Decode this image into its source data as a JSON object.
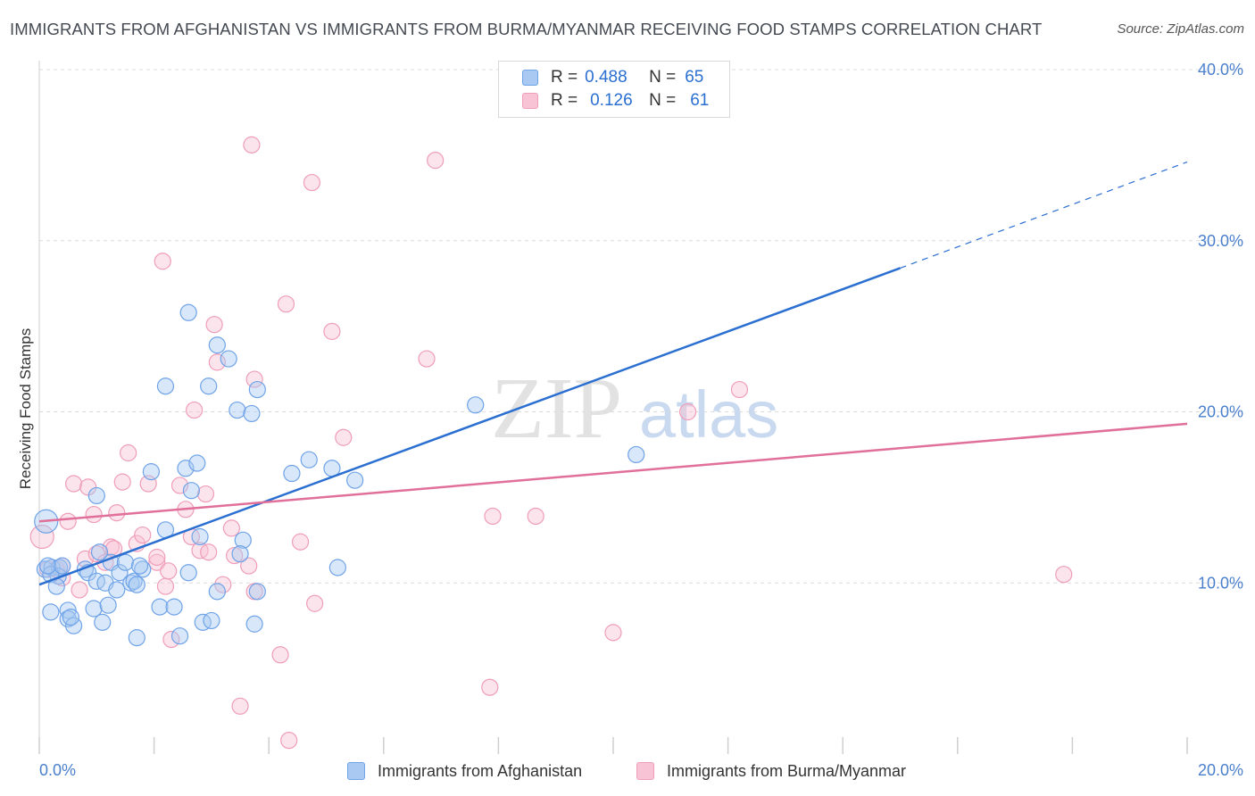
{
  "title": "IMMIGRANTS FROM AFGHANISTAN VS IMMIGRANTS FROM BURMA/MYANMAR RECEIVING FOOD STAMPS CORRELATION CHART",
  "source": "Source: ZipAtlas.com",
  "watermark": {
    "zip": "ZIP",
    "atlas": "atlas"
  },
  "legend": {
    "r_label": "R =",
    "n_label": "N =",
    "afghanistan": {
      "r": "0.488",
      "n": "65"
    },
    "burma": {
      "r": "0.126",
      "n": "61"
    }
  },
  "chart_data": {
    "type": "scatter",
    "title": "IMMIGRANTS FROM AFGHANISTAN VS IMMIGRANTS FROM BURMA/MYANMAR RECEIVING FOOD STAMPS CORRELATION CHART",
    "xlabel": "",
    "ylabel": "Receiving Food Stamps",
    "xlim": [
      0,
      20
    ],
    "ylim": [
      0,
      40
    ],
    "x_ticks": [
      "0.0%",
      "20.0%"
    ],
    "y_ticks": [
      {
        "value": 10,
        "label": "10.0%"
      },
      {
        "value": 20,
        "label": "20.0%"
      },
      {
        "value": 30,
        "label": "30.0%"
      },
      {
        "value": 40,
        "label": "40.0%"
      }
    ],
    "grid": true,
    "legend_position": "top-center",
    "series": [
      {
        "name": "Immigrants from Afghanistan",
        "color": "#6fa3e8",
        "fill": "#a9c9f2",
        "line_color": "#2b6fd1",
        "trend": {
          "x0": 0,
          "y0": 9.9,
          "x1": 15.0,
          "y1": 28.4,
          "x_dash_end": 20.0,
          "y_dash_end": 34.6
        },
        "points": [
          [
            0.12,
            13.6
          ],
          [
            0.1,
            10.8
          ],
          [
            0.22,
            10.9
          ],
          [
            0.35,
            10.9
          ],
          [
            0.33,
            10.4
          ],
          [
            0.2,
            10.5
          ],
          [
            0.3,
            9.8
          ],
          [
            0.5,
            8.4
          ],
          [
            0.2,
            8.3
          ],
          [
            0.5,
            7.9
          ],
          [
            0.6,
            7.5
          ],
          [
            0.55,
            8.0
          ],
          [
            0.8,
            10.8
          ],
          [
            0.85,
            10.6
          ],
          [
            1.0,
            10.1
          ],
          [
            1.15,
            10.0
          ],
          [
            0.95,
            8.5
          ],
          [
            1.1,
            7.7
          ],
          [
            1.2,
            8.7
          ],
          [
            1.0,
            15.1
          ],
          [
            1.35,
            9.6
          ],
          [
            1.25,
            11.2
          ],
          [
            1.4,
            10.6
          ],
          [
            1.5,
            11.2
          ],
          [
            1.6,
            10.0
          ],
          [
            1.65,
            10.1
          ],
          [
            1.7,
            9.9
          ],
          [
            1.8,
            10.8
          ],
          [
            1.75,
            11.0
          ],
          [
            1.7,
            6.8
          ],
          [
            1.95,
            16.5
          ],
          [
            2.1,
            8.6
          ],
          [
            2.2,
            13.1
          ],
          [
            2.35,
            8.6
          ],
          [
            2.45,
            6.9
          ],
          [
            2.55,
            16.7
          ],
          [
            2.6,
            10.6
          ],
          [
            2.6,
            25.8
          ],
          [
            2.2,
            21.5
          ],
          [
            2.65,
            15.4
          ],
          [
            2.75,
            17.0
          ],
          [
            2.8,
            12.7
          ],
          [
            2.95,
            21.5
          ],
          [
            2.85,
            7.7
          ],
          [
            3.0,
            7.8
          ],
          [
            3.1,
            9.5
          ],
          [
            3.1,
            23.9
          ],
          [
            3.3,
            23.1
          ],
          [
            3.45,
            20.1
          ],
          [
            3.55,
            12.5
          ],
          [
            3.5,
            11.7
          ],
          [
            3.7,
            19.9
          ],
          [
            3.75,
            7.6
          ],
          [
            3.8,
            9.5
          ],
          [
            3.8,
            21.3
          ],
          [
            4.4,
            16.4
          ],
          [
            4.7,
            17.2
          ],
          [
            5.1,
            16.7
          ],
          [
            5.2,
            10.9
          ],
          [
            5.5,
            16.0
          ],
          [
            7.6,
            20.4
          ],
          [
            10.4,
            17.5
          ],
          [
            0.15,
            11.0
          ],
          [
            0.4,
            11.0
          ],
          [
            1.05,
            11.8
          ]
        ]
      },
      {
        "name": "Immigrants from Burma/Myanmar",
        "color": "#ef9db8",
        "fill": "#f8c4d5",
        "line_color": "#e06f9a",
        "trend": {
          "x0": 0,
          "y0": 13.6,
          "x1": 20.0,
          "y1": 19.3
        },
        "points": [
          [
            0.05,
            12.7
          ],
          [
            0.15,
            10.8
          ],
          [
            0.3,
            10.8
          ],
          [
            0.4,
            10.3
          ],
          [
            0.5,
            13.6
          ],
          [
            0.6,
            15.8
          ],
          [
            0.7,
            9.6
          ],
          [
            0.8,
            11.4
          ],
          [
            0.85,
            15.6
          ],
          [
            0.95,
            14.0
          ],
          [
            1.0,
            11.7
          ],
          [
            1.15,
            11.2
          ],
          [
            1.25,
            12.1
          ],
          [
            1.35,
            14.1
          ],
          [
            1.45,
            15.9
          ],
          [
            1.55,
            17.6
          ],
          [
            1.7,
            12.3
          ],
          [
            1.8,
            12.8
          ],
          [
            1.9,
            15.8
          ],
          [
            2.05,
            11.2
          ],
          [
            2.15,
            28.8
          ],
          [
            2.2,
            9.8
          ],
          [
            2.25,
            10.7
          ],
          [
            2.3,
            6.7
          ],
          [
            2.45,
            15.7
          ],
          [
            2.55,
            14.3
          ],
          [
            2.65,
            12.7
          ],
          [
            2.7,
            20.1
          ],
          [
            2.8,
            11.9
          ],
          [
            2.9,
            15.2
          ],
          [
            3.05,
            25.1
          ],
          [
            3.1,
            22.9
          ],
          [
            3.2,
            9.9
          ],
          [
            3.35,
            13.2
          ],
          [
            3.4,
            11.6
          ],
          [
            3.5,
            2.8
          ],
          [
            3.65,
            11.0
          ],
          [
            3.75,
            9.5
          ],
          [
            3.75,
            21.9
          ],
          [
            3.7,
            35.6
          ],
          [
            4.2,
            5.8
          ],
          [
            4.3,
            26.3
          ],
          [
            4.35,
            0.8
          ],
          [
            4.55,
            12.4
          ],
          [
            4.75,
            33.4
          ],
          [
            4.8,
            8.8
          ],
          [
            5.1,
            24.7
          ],
          [
            5.3,
            18.5
          ],
          [
            6.75,
            23.1
          ],
          [
            6.9,
            34.7
          ],
          [
            7.85,
            3.9
          ],
          [
            7.9,
            13.9
          ],
          [
            8.65,
            13.9
          ],
          [
            10.0,
            7.1
          ],
          [
            11.3,
            20.0
          ],
          [
            12.2,
            21.3
          ],
          [
            17.85,
            10.5
          ],
          [
            1.3,
            12.0
          ],
          [
            2.95,
            11.8
          ],
          [
            0.4,
            11.0
          ],
          [
            2.05,
            11.5
          ]
        ]
      }
    ]
  },
  "bottom_legend": {
    "afghanistan_label": "Immigrants from Afghanistan",
    "burma_label": "Immigrants from Burma/Myanmar"
  },
  "colors": {
    "blue_stroke": "#6fa3e8",
    "blue_fill": "#a9c9f2",
    "blue_line": "#2b6fd1",
    "pink_stroke": "#ef9db8",
    "pink_fill": "#f8c4d5",
    "pink_line": "#e06f9a",
    "tick_text": "#4a7fcc",
    "grid": "#dcdcdc"
  }
}
